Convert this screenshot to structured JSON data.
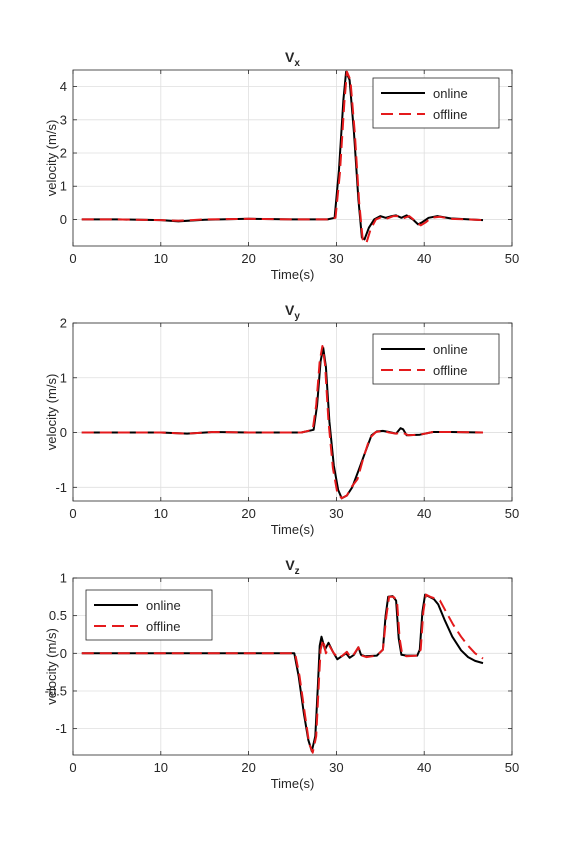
{
  "colors": {
    "online": "#000000",
    "offline": "#e41a1c",
    "grid": "#dfdfdf",
    "axis": "#262626"
  },
  "chart_data": [
    {
      "type": "line",
      "title": "V",
      "title_subscript": "x",
      "xlabel": "Time(s)",
      "ylabel": "velocity (m/s)",
      "xlim": [
        0,
        50
      ],
      "ylim": [
        -0.8,
        4.5
      ],
      "xticks": [
        0,
        10,
        20,
        30,
        40,
        50
      ],
      "yticks": [
        0,
        1,
        2,
        3,
        4
      ],
      "grid": true,
      "legend": "top-right",
      "series": [
        {
          "name": "online",
          "style": "solid",
          "points": [
            [
              1,
              0
            ],
            [
              5,
              0
            ],
            [
              10,
              -0.02
            ],
            [
              12,
              -0.06
            ],
            [
              15,
              -0.01
            ],
            [
              20,
              0.02
            ],
            [
              25,
              0
            ],
            [
              29,
              0
            ],
            [
              29.8,
              0.05
            ],
            [
              30.3,
              1.5
            ],
            [
              30.8,
              3.6
            ],
            [
              31.1,
              4.45
            ],
            [
              31.5,
              4.2
            ],
            [
              32,
              2.6
            ],
            [
              32.5,
              0.6
            ],
            [
              32.9,
              -0.55
            ],
            [
              33.2,
              -0.6
            ],
            [
              33.7,
              -0.25
            ],
            [
              34.3,
              0
            ],
            [
              35,
              0.1
            ],
            [
              35.6,
              0.05
            ],
            [
              36.3,
              0.1
            ],
            [
              36.8,
              0.12
            ],
            [
              37.4,
              0.05
            ],
            [
              38,
              0.12
            ],
            [
              38.7,
              0
            ],
            [
              39.3,
              -0.15
            ],
            [
              39.8,
              -0.08
            ],
            [
              40.5,
              0.05
            ],
            [
              41.5,
              0.1
            ],
            [
              43,
              0.03
            ],
            [
              46.7,
              -0.02
            ]
          ]
        },
        {
          "name": "offline",
          "style": "dashed",
          "points": [
            [
              1,
              0
            ],
            [
              5,
              0
            ],
            [
              10,
              -0.02
            ],
            [
              12,
              -0.04
            ],
            [
              15,
              0
            ],
            [
              20,
              0.02
            ],
            [
              25,
              0
            ],
            [
              29,
              0
            ],
            [
              29.9,
              0.05
            ],
            [
              30.4,
              1.4
            ],
            [
              30.9,
              3.5
            ],
            [
              31.2,
              4.45
            ],
            [
              31.6,
              4.2
            ],
            [
              32.1,
              2.6
            ],
            [
              32.6,
              0.5
            ],
            [
              33,
              -0.6
            ],
            [
              33.4,
              -0.72
            ],
            [
              33.9,
              -0.3
            ],
            [
              34.5,
              0
            ],
            [
              35.2,
              0.08
            ],
            [
              35.8,
              0.03
            ],
            [
              36.5,
              0.1
            ],
            [
              37,
              0.1
            ],
            [
              37.6,
              0.03
            ],
            [
              38.3,
              0.1
            ],
            [
              39,
              -0.05
            ],
            [
              39.6,
              -0.18
            ],
            [
              40.2,
              -0.08
            ],
            [
              40.8,
              0.05
            ],
            [
              41.8,
              0.08
            ],
            [
              43,
              0.02
            ],
            [
              46.7,
              -0.02
            ]
          ]
        }
      ]
    },
    {
      "type": "line",
      "title": "V",
      "title_subscript": "y",
      "xlabel": "Time(s)",
      "ylabel": "velocity (m/s)",
      "xlim": [
        0,
        50
      ],
      "ylim": [
        -1.25,
        2
      ],
      "xticks": [
        0,
        10,
        20,
        30,
        40,
        50
      ],
      "yticks": [
        -1,
        0,
        1,
        2
      ],
      "grid": true,
      "legend": "top-right",
      "series": [
        {
          "name": "online",
          "style": "solid",
          "points": [
            [
              1,
              0
            ],
            [
              6,
              0
            ],
            [
              10,
              0
            ],
            [
              13,
              -0.02
            ],
            [
              16,
              0.01
            ],
            [
              20,
              0
            ],
            [
              24,
              0
            ],
            [
              26,
              0
            ],
            [
              27.4,
              0.05
            ],
            [
              27.8,
              0.5
            ],
            [
              28.2,
              1.3
            ],
            [
              28.5,
              1.55
            ],
            [
              28.8,
              1.2
            ],
            [
              29.2,
              0.2
            ],
            [
              29.7,
              -0.6
            ],
            [
              30.2,
              -1.05
            ],
            [
              30.6,
              -1.2
            ],
            [
              31.2,
              -1.15
            ],
            [
              31.8,
              -1
            ],
            [
              32.5,
              -0.7
            ],
            [
              33.3,
              -0.35
            ],
            [
              34,
              -0.05
            ],
            [
              34.6,
              0.02
            ],
            [
              35.3,
              0.03
            ],
            [
              36,
              0.01
            ],
            [
              36.8,
              -0.02
            ],
            [
              37.3,
              0.08
            ],
            [
              37.6,
              0.06
            ],
            [
              38,
              -0.05
            ],
            [
              39.5,
              -0.04
            ],
            [
              41,
              0.01
            ],
            [
              43,
              0.01
            ],
            [
              46.7,
              0
            ]
          ]
        },
        {
          "name": "offline",
          "style": "dashed",
          "points": [
            [
              1,
              0
            ],
            [
              6,
              0
            ],
            [
              10,
              0
            ],
            [
              13,
              -0.02
            ],
            [
              16,
              0.01
            ],
            [
              20,
              0
            ],
            [
              24,
              0
            ],
            [
              26,
              0
            ],
            [
              27.3,
              0.05
            ],
            [
              27.7,
              0.5
            ],
            [
              28.1,
              1.3
            ],
            [
              28.4,
              1.58
            ],
            [
              28.7,
              1.25
            ],
            [
              29.1,
              0.2
            ],
            [
              29.6,
              -0.65
            ],
            [
              30.1,
              -1.1
            ],
            [
              30.6,
              -1.2
            ],
            [
              31.2,
              -1.15
            ],
            [
              31.7,
              -1
            ],
            [
              32.4,
              -0.85
            ],
            [
              33.1,
              -0.45
            ],
            [
              33.8,
              -0.1
            ],
            [
              34.5,
              0.01
            ],
            [
              35.3,
              0.03
            ],
            [
              36,
              0
            ],
            [
              36.8,
              -0.02
            ],
            [
              37.5,
              0
            ],
            [
              38.2,
              -0.05
            ],
            [
              39.5,
              -0.04
            ],
            [
              41,
              0.01
            ],
            [
              43,
              0.01
            ],
            [
              46.7,
              0
            ]
          ]
        }
      ]
    },
    {
      "type": "line",
      "title": "V",
      "title_subscript": "z",
      "xlabel": "Time(s)",
      "ylabel": "velocity (m/s)",
      "xlim": [
        0,
        50
      ],
      "ylim": [
        -1.35,
        1
      ],
      "xticks": [
        0,
        10,
        20,
        30,
        40,
        50
      ],
      "yticks": [
        -1,
        -0.5,
        0,
        0.5,
        1
      ],
      "grid": true,
      "legend": "top-left",
      "series": [
        {
          "name": "online",
          "style": "solid",
          "points": [
            [
              1,
              0
            ],
            [
              5,
              0
            ],
            [
              10,
              0
            ],
            [
              15,
              0
            ],
            [
              20,
              0
            ],
            [
              24,
              0
            ],
            [
              25.2,
              0
            ],
            [
              25.7,
              -0.3
            ],
            [
              26.3,
              -0.8
            ],
            [
              26.8,
              -1.15
            ],
            [
              27.2,
              -1.3
            ],
            [
              27.6,
              -1.1
            ],
            [
              27.9,
              -0.4
            ],
            [
              28.1,
              0.1
            ],
            [
              28.3,
              0.22
            ],
            [
              28.7,
              0.05
            ],
            [
              29.1,
              0.14
            ],
            [
              29.6,
              0.02
            ],
            [
              30.1,
              -0.08
            ],
            [
              30.6,
              -0.04
            ],
            [
              31.1,
              0
            ],
            [
              31.5,
              -0.06
            ],
            [
              32,
              -0.02
            ],
            [
              32.5,
              0.08
            ],
            [
              32.8,
              -0.02
            ],
            [
              33.3,
              -0.04
            ],
            [
              34.6,
              -0.03
            ],
            [
              35.3,
              0.05
            ],
            [
              35.6,
              0.5
            ],
            [
              35.9,
              0.75
            ],
            [
              36.4,
              0.76
            ],
            [
              36.8,
              0.7
            ],
            [
              37.1,
              0.2
            ],
            [
              37.4,
              -0.02
            ],
            [
              38,
              -0.03
            ],
            [
              39.2,
              -0.03
            ],
            [
              39.5,
              0.05
            ],
            [
              39.8,
              0.55
            ],
            [
              40.1,
              0.78
            ],
            [
              40.6,
              0.75
            ],
            [
              41.1,
              0.72
            ],
            [
              41.6,
              0.65
            ],
            [
              42.3,
              0.45
            ],
            [
              43.2,
              0.22
            ],
            [
              44.2,
              0.04
            ],
            [
              45,
              -0.05
            ],
            [
              45.8,
              -0.1
            ],
            [
              46.7,
              -0.13
            ]
          ]
        },
        {
          "name": "offline",
          "style": "dashed",
          "points": [
            [
              1,
              0
            ],
            [
              5,
              0
            ],
            [
              10,
              0
            ],
            [
              15,
              0
            ],
            [
              20,
              0
            ],
            [
              24,
              0
            ],
            [
              25.3,
              0
            ],
            [
              25.8,
              -0.3
            ],
            [
              26.4,
              -0.8
            ],
            [
              26.9,
              -1.2
            ],
            [
              27.3,
              -1.32
            ],
            [
              27.7,
              -1.1
            ],
            [
              28,
              -0.4
            ],
            [
              28.2,
              0.05
            ],
            [
              28.5,
              0.18
            ],
            [
              28.8,
              0.0
            ],
            [
              29.2,
              0.1
            ],
            [
              29.7,
              0
            ],
            [
              30.2,
              -0.06
            ],
            [
              30.7,
              -0.03
            ],
            [
              31.2,
              0.02
            ],
            [
              31.6,
              -0.05
            ],
            [
              32,
              -0.01
            ],
            [
              32.5,
              0.08
            ],
            [
              32.9,
              -0.03
            ],
            [
              33.4,
              -0.05
            ],
            [
              34.6,
              -0.03
            ],
            [
              35.3,
              0.05
            ],
            [
              35.7,
              0.5
            ],
            [
              36,
              0.75
            ],
            [
              36.5,
              0.75
            ],
            [
              36.9,
              0.7
            ],
            [
              37.2,
              0.2
            ],
            [
              37.5,
              -0.02
            ],
            [
              38,
              -0.04
            ],
            [
              39.3,
              -0.03
            ],
            [
              39.6,
              0.05
            ],
            [
              39.9,
              0.55
            ],
            [
              40.2,
              0.78
            ],
            [
              40.7,
              0.75
            ],
            [
              41.2,
              0.73
            ],
            [
              41.8,
              0.7
            ],
            [
              42.5,
              0.55
            ],
            [
              43.3,
              0.38
            ],
            [
              44.2,
              0.22
            ],
            [
              45,
              0.1
            ],
            [
              45.8,
              0
            ],
            [
              46.7,
              -0.07
            ]
          ]
        }
      ]
    }
  ]
}
